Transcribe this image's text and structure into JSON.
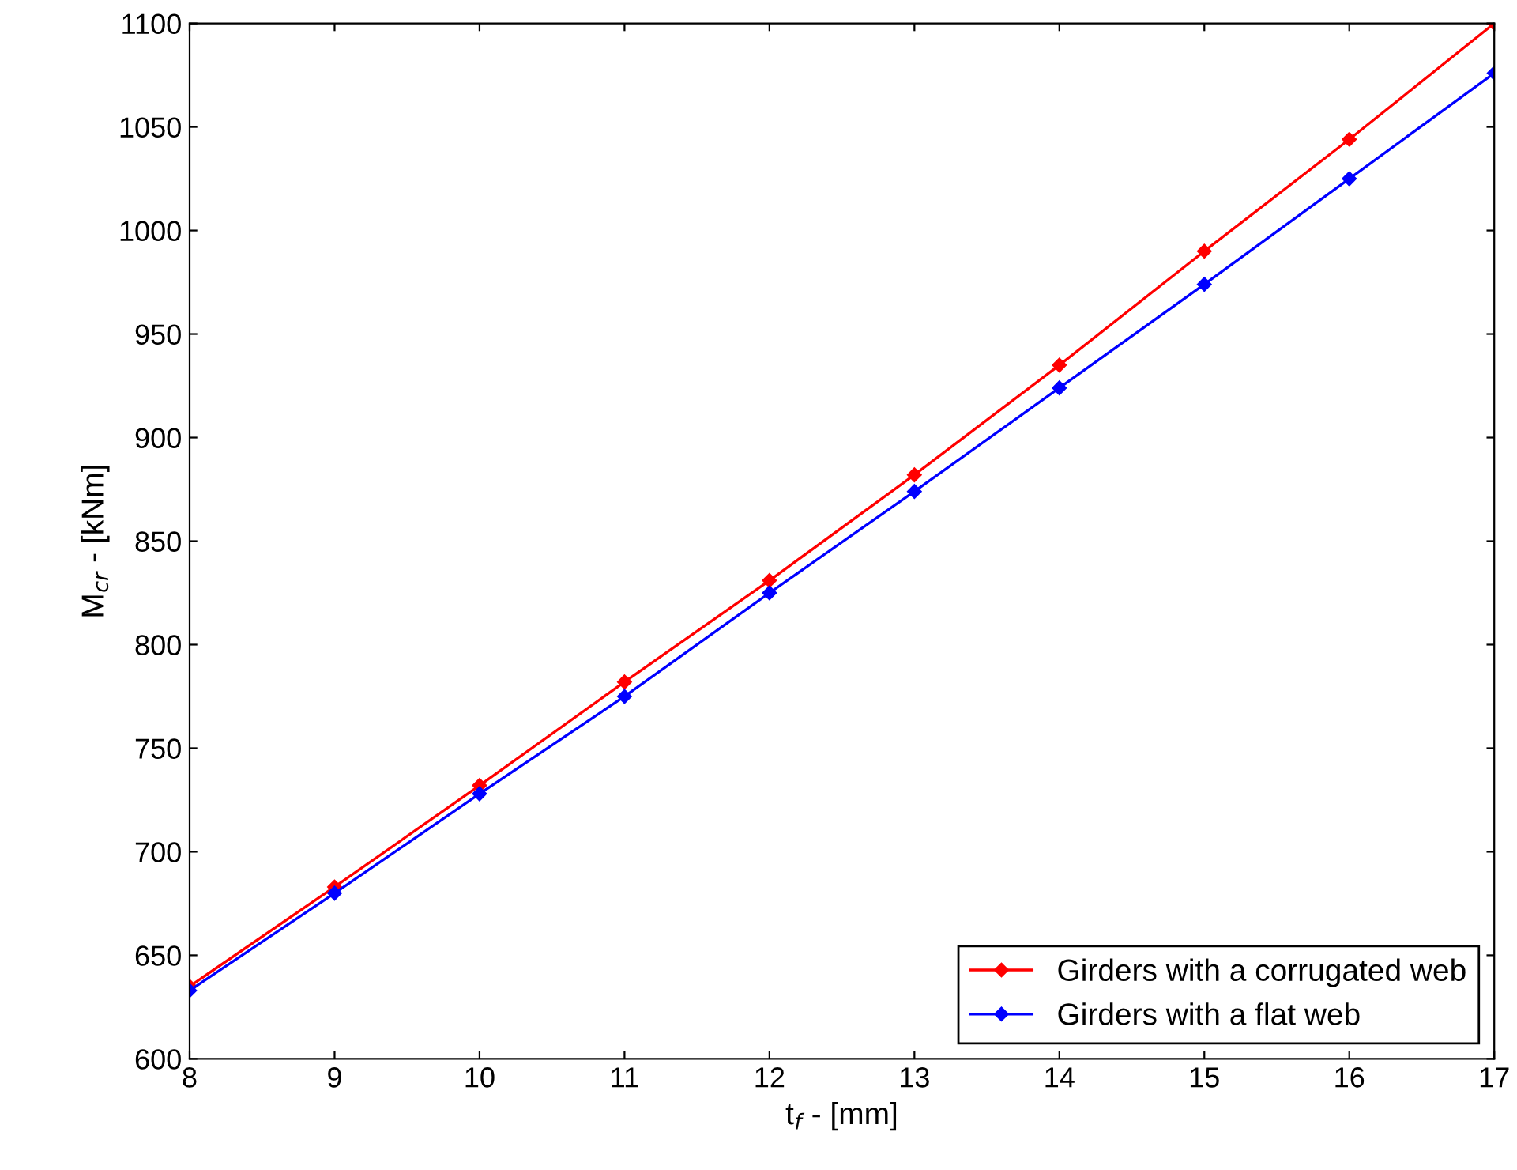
{
  "chart_data": {
    "type": "line",
    "xlabel": "t$_{f}$ - [mm]",
    "ylabel": "M$_{cr}$ - [kNm]",
    "x": [
      8,
      9,
      10,
      11,
      12,
      13,
      14,
      15,
      16,
      17
    ],
    "series": [
      {
        "name": "Girders with a corrugated web",
        "color": "#ff0000",
        "values": [
          635,
          683,
          732,
          782,
          831,
          882,
          935,
          990,
          1044,
          1100
        ]
      },
      {
        "name": "Girders with a flat web",
        "color": "#0000ff",
        "values": [
          633,
          680,
          728,
          775,
          825,
          874,
          924,
          974,
          1025,
          1076
        ]
      }
    ],
    "xlim": [
      8,
      17
    ],
    "xticks": [
      8,
      9,
      10,
      11,
      12,
      13,
      14,
      15,
      16,
      17
    ],
    "ylim": [
      600,
      1100
    ],
    "yticks": [
      600,
      650,
      700,
      750,
      800,
      850,
      900,
      950,
      1000,
      1050,
      1100
    ],
    "grid": false,
    "legend": "bottom right",
    "marker": "diamond",
    "line_style": "solid"
  }
}
